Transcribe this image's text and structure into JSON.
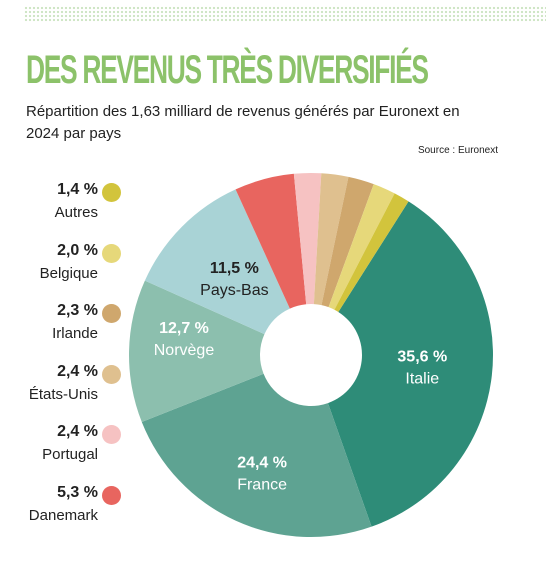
{
  "title": "DES REVENUS TRÈS DIVERSIFIÉS",
  "subtitle": "Répartition des 1,63 milliard de revenus générés par Euronext en 2024 par pays",
  "source": "Source : Euronext",
  "chart_data": {
    "type": "pie",
    "donut": true,
    "unit": "%",
    "slices": [
      {
        "label": "Italie",
        "value_text": "35,6 %",
        "value": 35.6,
        "color": "#2e8c78"
      },
      {
        "label": "France",
        "value_text": "24,4 %",
        "value": 24.4,
        "color": "#5ea392"
      },
      {
        "label": "Norvège",
        "value_text": "12,7 %",
        "value": 12.7,
        "color": "#8cbfae"
      },
      {
        "label": "Pays-Bas",
        "value_text": "11,5 %",
        "value": 11.5,
        "color": "#a9d3d6"
      },
      {
        "label": "Danemark",
        "value_text": "5,3 %",
        "value": 5.3,
        "color": "#e8655f"
      },
      {
        "label": "Portugal",
        "value_text": "2,4 %",
        "value": 2.4,
        "color": "#f6c2c2"
      },
      {
        "label": "États-Unis",
        "value_text": "2,4 %",
        "value": 2.4,
        "color": "#dfc08f"
      },
      {
        "label": "Irlande",
        "value_text": "2,3 %",
        "value": 2.3,
        "color": "#cfa76d"
      },
      {
        "label": "Belgique",
        "value_text": "2,0 %",
        "value": 2.0,
        "color": "#e6d87a"
      },
      {
        "label": "Autres",
        "value_text": "1,4 %",
        "value": 1.4,
        "color": "#d2c43c"
      }
    ]
  }
}
